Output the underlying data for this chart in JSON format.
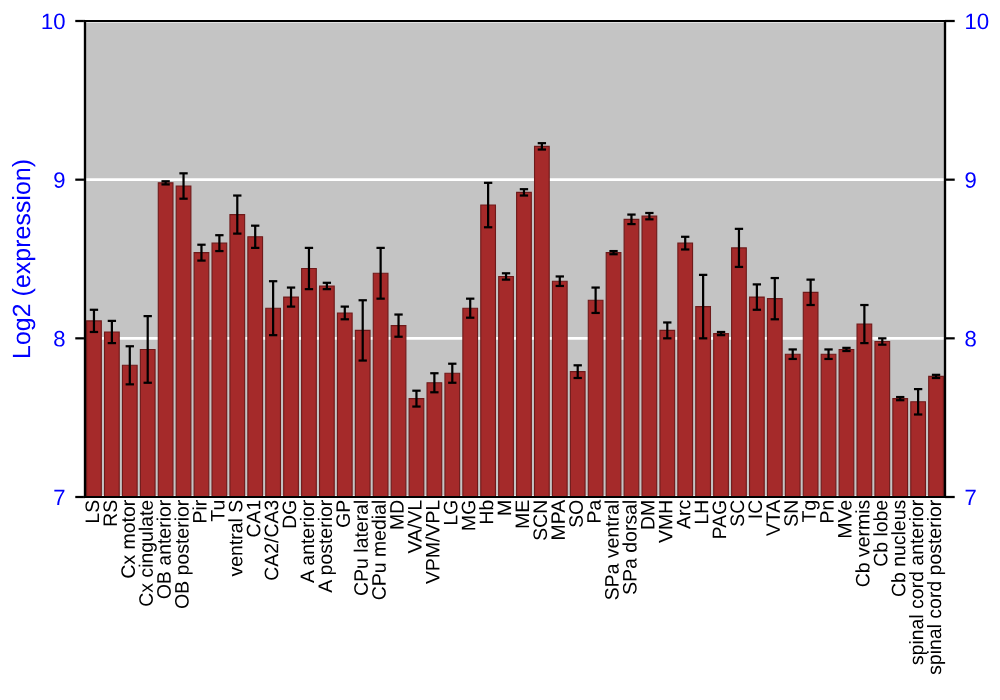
{
  "chart_data": {
    "type": "bar",
    "ylabel": "Log2 (expression)",
    "categories": [
      "LS",
      "RS",
      "Cx motor",
      "Cx cingulate",
      "OB anterior",
      "OB posterior",
      "Pir",
      "Tu",
      "ventral S",
      "CA1",
      "CA2/CA3",
      "DG",
      "A anterior",
      "A posterior",
      "GP",
      "CPu lateral",
      "CPu medial",
      "MD",
      "VA/VL",
      "VPM/VPL",
      "LG",
      "MG",
      "Hb",
      "M",
      "ME",
      "SCN",
      "MPA",
      "SO",
      "Pa",
      "SPa ventral",
      "SPa dorsal",
      "DM",
      "VMH",
      "Arc",
      "LH",
      "PAG",
      "SC",
      "IC",
      "VTA",
      "SN",
      "Tg",
      "Pn",
      "MVe",
      "Cb vermis",
      "Cb lobe",
      "Cb nucleus",
      "spinal cord anterior",
      "spinal cord posterior"
    ],
    "values": [
      8.11,
      8.04,
      7.83,
      7.93,
      8.98,
      8.96,
      8.54,
      8.6,
      8.78,
      8.64,
      8.19,
      8.26,
      8.44,
      8.33,
      8.16,
      8.05,
      8.41,
      8.08,
      7.62,
      7.72,
      7.78,
      8.19,
      8.84,
      8.39,
      8.92,
      9.21,
      8.36,
      7.79,
      8.24,
      8.54,
      8.75,
      8.77,
      8.05,
      8.6,
      8.2,
      8.03,
      8.57,
      8.26,
      8.25,
      7.9,
      8.29,
      7.9,
      7.93,
      8.09,
      7.98,
      7.62,
      7.6,
      7.76
    ],
    "errors": [
      0.07,
      0.07,
      0.12,
      0.21,
      0.01,
      0.08,
      0.05,
      0.05,
      0.12,
      0.07,
      0.17,
      0.06,
      0.13,
      0.02,
      0.04,
      0.19,
      0.16,
      0.07,
      0.05,
      0.06,
      0.06,
      0.06,
      0.14,
      0.02,
      0.02,
      0.02,
      0.03,
      0.04,
      0.08,
      0.01,
      0.03,
      0.02,
      0.05,
      0.04,
      0.2,
      0.01,
      0.12,
      0.08,
      0.13,
      0.03,
      0.08,
      0.03,
      0.01,
      0.12,
      0.02,
      0.01,
      0.08,
      0.01
    ],
    "color": "#a52a2a",
    "ylim": [
      7,
      10
    ],
    "yticks": [
      7,
      8,
      9,
      10
    ],
    "y2lim": [
      7,
      10
    ],
    "y2ticks": [
      7,
      8,
      9,
      10
    ],
    "grid": "y"
  }
}
